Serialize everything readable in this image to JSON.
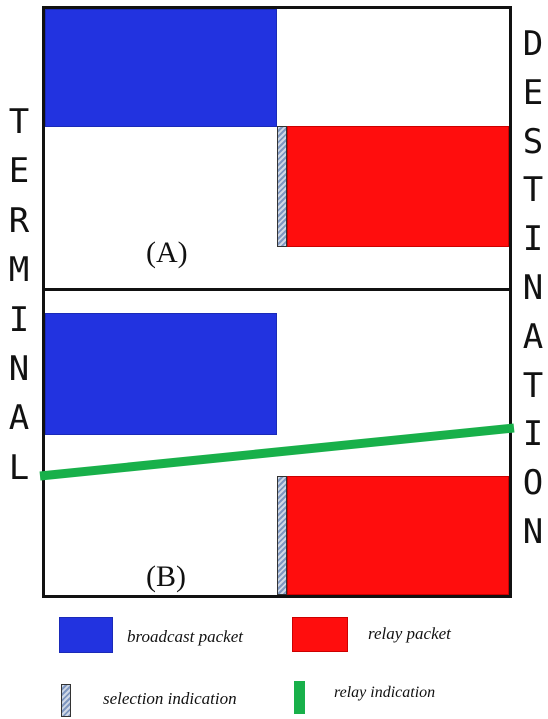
{
  "left_label": "TERMINAL",
  "right_label": "DESTINATION",
  "panels": [
    {
      "tag": "(A)"
    },
    {
      "tag": "(B)"
    }
  ],
  "legend": {
    "broadcast": "broadcast packet",
    "relay": "relay packet",
    "selection": "selection indication",
    "relay_indication": "relay indication"
  },
  "colors": {
    "broadcast": "#2233e0",
    "relay": "#ff0d0d",
    "relay_indication": "#18b04a"
  }
}
